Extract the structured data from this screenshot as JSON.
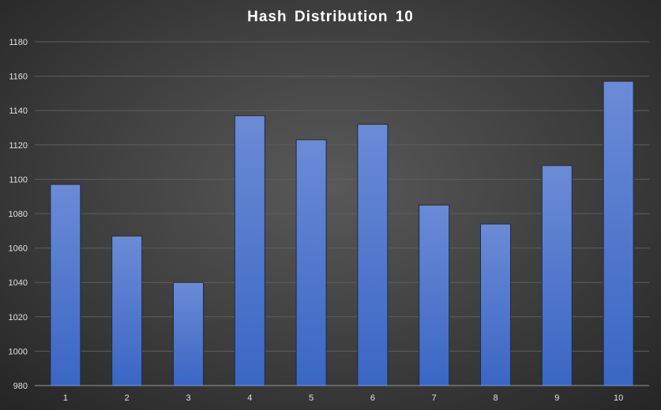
{
  "chart_data": {
    "type": "bar",
    "title": "Hash Distribution 10",
    "xlabel": "",
    "ylabel": "",
    "categories": [
      "1",
      "2",
      "3",
      "4",
      "5",
      "6",
      "7",
      "8",
      "9",
      "10"
    ],
    "values": [
      1097,
      1067,
      1040,
      1137,
      1123,
      1132,
      1085,
      1074,
      1108,
      1157
    ],
    "ylim": [
      980,
      1180
    ],
    "yticks": [
      980,
      1000,
      1020,
      1040,
      1060,
      1080,
      1100,
      1120,
      1140,
      1160,
      1180
    ],
    "grid": true,
    "legend": "none",
    "colors": {
      "bar_top": "#6b8bd6",
      "bar_bottom": "#3a66c4",
      "bar_edge": "#1f2a44",
      "grid": "#5e5e5e",
      "axis": "#9a9a9a",
      "text": "#e0e0e0"
    }
  }
}
